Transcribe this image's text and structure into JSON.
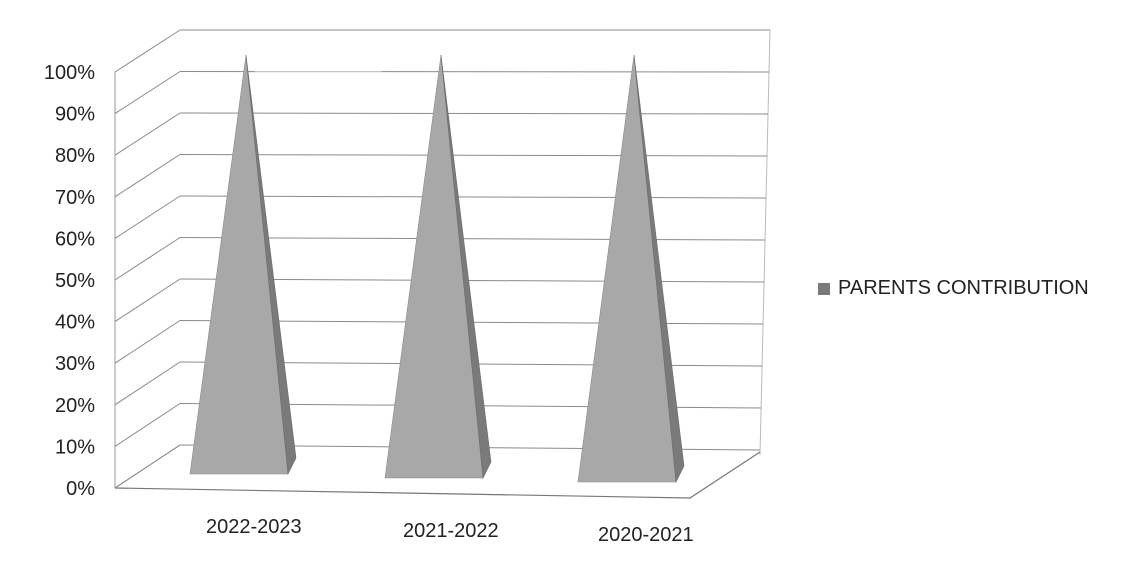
{
  "chart_data": {
    "type": "bar",
    "style": "3d-pyramid",
    "categories": [
      "2022-2023",
      "2021-2022",
      "2020-2021"
    ],
    "series": [
      {
        "name": "PARENTS CONTRIBUTION",
        "values": [
          100,
          100,
          100
        ]
      }
    ],
    "ylim": [
      0,
      100
    ],
    "y_ticks": [
      "0%",
      "10%",
      "20%",
      "30%",
      "40%",
      "50%",
      "60%",
      "70%",
      "80%",
      "90%",
      "100%"
    ],
    "grid": true,
    "legend_position": "right",
    "colors": {
      "pyramid_light": "#a8a8a8",
      "pyramid_dark": "#7a7a7a",
      "grid": "#8a8a8a"
    }
  }
}
